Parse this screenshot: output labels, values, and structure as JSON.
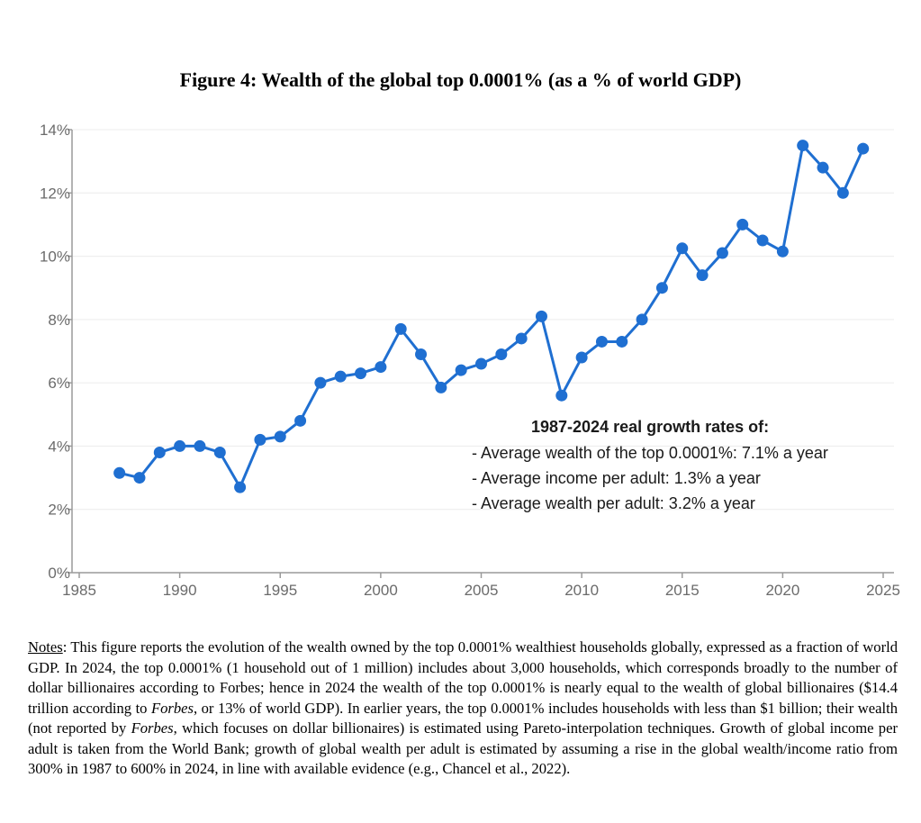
{
  "figure": {
    "title": "Figure 4: Wealth of the global top 0.0001% (as a % of world GDP)"
  },
  "chart_data": {
    "type": "line",
    "title": "Figure 4: Wealth of the global top 0.0001% (as a % of world GDP)",
    "xlabel": "",
    "ylabel": "",
    "xlim": [
      1985,
      2025
    ],
    "ylim": [
      0,
      14
    ],
    "x_ticks": [
      1985,
      1990,
      1995,
      2000,
      2005,
      2010,
      2015,
      2020,
      2025
    ],
    "x_tick_labels": [
      "1985",
      "1990",
      "1995",
      "2000",
      "2005",
      "2010",
      "2015",
      "2020",
      "2025"
    ],
    "y_ticks": [
      0,
      2,
      4,
      6,
      8,
      10,
      12,
      14
    ],
    "y_tick_labels": [
      "0%",
      "2%",
      "4%",
      "6%",
      "8%",
      "10%",
      "12%",
      "14%"
    ],
    "grid": "horizontal",
    "legend": "none",
    "color": "#1f6fd1",
    "series": [
      {
        "name": "Wealth of the global top 0.0001% (% of world GDP)",
        "x": [
          1987,
          1988,
          1989,
          1990,
          1991,
          1992,
          1993,
          1994,
          1995,
          1996,
          1997,
          1998,
          1999,
          2000,
          2001,
          2002,
          2003,
          2004,
          2005,
          2006,
          2007,
          2008,
          2009,
          2010,
          2011,
          2012,
          2013,
          2014,
          2015,
          2016,
          2017,
          2018,
          2019,
          2020,
          2021,
          2022,
          2023,
          2024
        ],
        "values": [
          3.15,
          3.0,
          3.8,
          4.0,
          4.0,
          3.8,
          2.7,
          4.2,
          4.3,
          4.8,
          6.0,
          6.2,
          6.3,
          6.5,
          7.7,
          6.9,
          5.85,
          6.4,
          6.6,
          6.9,
          7.4,
          8.1,
          5.6,
          6.8,
          7.3,
          7.3,
          8.0,
          9.0,
          10.25,
          9.4,
          10.1,
          11.0,
          10.5,
          10.15,
          13.5,
          12.8,
          12.0,
          13.4
        ]
      }
    ],
    "annotations": {
      "heading": "1987-2024 real growth rates of:",
      "lines": [
        "- Average wealth of the top 0.0001%: 7.1% a year",
        "- Average income per adult: 1.3% a year",
        "- Average wealth per adult: 3.2% a year"
      ]
    }
  },
  "notes": {
    "label": "Notes",
    "parts": [
      ": This figure reports the evolution of the wealth owned by the top 0.0001% wealthiest households globally, expressed as a fraction of world GDP. In 2024, the top 0.0001% (1 household out of 1 million) includes about 3,000 households, which corresponds broadly to the number of dollar billionaires according to Forbes; hence in 2024 the wealth of the top 0.0001% is nearly equal to the wealth of global billionaires ($14.4 trillion according to ",
      "Forbes",
      ", or 13% of world GDP). In earlier years, the top 0.0001% includes households with less than $1 billion; their wealth (not reported by ",
      "Forbes",
      ", which focuses on dollar billionaires) is estimated using Pareto-interpolation techniques. Growth of global income per adult is taken from the World Bank; growth of global wealth per adult is estimated by assuming a rise in the global wealth/income ratio from 300% in 1987 to 600% in 2024, in line with available evidence (e.g., Chancel et al., 2022)."
    ]
  }
}
